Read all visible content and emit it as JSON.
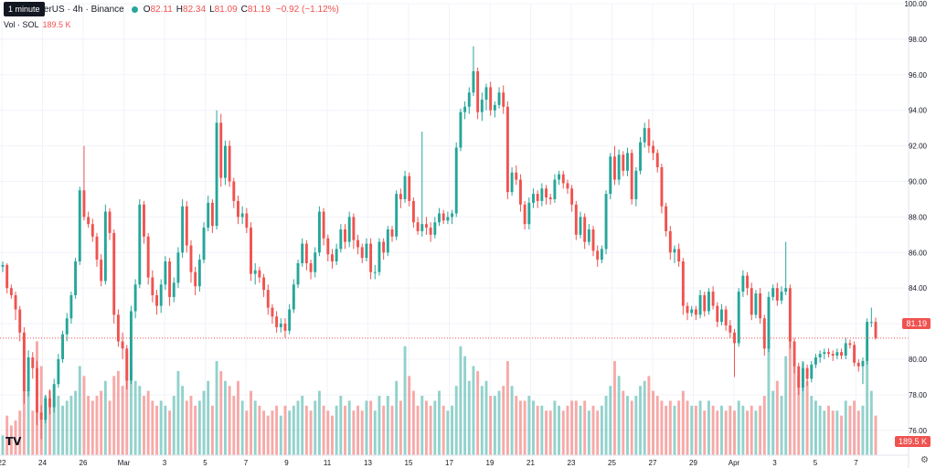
{
  "header": {
    "symbol_text": "etherUS · 4h · Binance",
    "o_label": "O",
    "o_value": "82.11",
    "h_label": "H",
    "h_value": "82.34",
    "l_label": "L",
    "l_value": "81.09",
    "c_label": "C",
    "c_value": "81.19",
    "change": "−0.92 (−1.12%)",
    "interval_tooltip": "1 minute"
  },
  "volume_legend": {
    "label": "Vol · SOL",
    "value": "189.5 K"
  },
  "price_tag": "81.19",
  "volume_tag": "189.5 K",
  "logo_text": "TV",
  "settings_icon": "gear-icon",
  "colors": {
    "up": "#26a69a",
    "down": "#ef5350",
    "grid": "#f0f3fa",
    "axis_text": "#131722"
  },
  "chart_data": {
    "type": "candlestick",
    "y_axis": {
      "min": 74.6,
      "max": 100.0,
      "ticks": [
        "100.00",
        "98.00",
        "96.00",
        "94.00",
        "92.00",
        "90.00",
        "88.00",
        "86.00",
        "84.00",
        "82.00",
        "80.00",
        "78.00",
        "76.00"
      ]
    },
    "x_axis": {
      "ticks": [
        "22",
        "24",
        "26",
        "Mar",
        "3",
        "5",
        "7",
        "9",
        "11",
        "13",
        "15",
        "17",
        "19",
        "21",
        "23",
        "25",
        "27",
        "29",
        "Apr",
        "3",
        "5",
        "7"
      ]
    },
    "last_price": 81.19,
    "candles_ohlcv": [
      [
        85.2,
        85.5,
        84.9,
        85.3,
        20
      ],
      [
        85.3,
        85.4,
        83.7,
        84.0,
        40
      ],
      [
        84.0,
        84.2,
        83.4,
        83.6,
        30
      ],
      [
        83.6,
        83.8,
        82.2,
        82.8,
        35
      ],
      [
        82.8,
        83.0,
        81.0,
        81.5,
        45
      ],
      [
        81.5,
        81.8,
        77.5,
        78.2,
        120
      ],
      [
        78.2,
        80.5,
        77.9,
        80.1,
        70
      ],
      [
        80.1,
        80.4,
        78.9,
        79.5,
        45
      ],
      [
        79.5,
        79.9,
        76.3,
        77.0,
        115
      ],
      [
        77.0,
        77.4,
        75.5,
        76.6,
        90
      ],
      [
        76.6,
        78.0,
        76.4,
        77.8,
        60
      ],
      [
        77.8,
        78.3,
        76.9,
        77.3,
        65
      ],
      [
        77.3,
        78.9,
        77.0,
        78.6,
        55
      ],
      [
        78.6,
        80.3,
        78.4,
        80.0,
        60
      ],
      [
        80.0,
        81.6,
        79.8,
        81.4,
        50
      ],
      [
        81.4,
        82.6,
        81.0,
        82.3,
        55
      ],
      [
        82.3,
        83.8,
        82.0,
        83.6,
        60
      ],
      [
        83.6,
        85.7,
        83.4,
        85.5,
        65
      ],
      [
        85.5,
        89.7,
        85.3,
        89.5,
        90
      ],
      [
        89.5,
        92.0,
        87.8,
        88.0,
        80
      ],
      [
        88.0,
        88.3,
        87.4,
        87.6,
        60
      ],
      [
        87.6,
        87.9,
        86.6,
        86.9,
        55
      ],
      [
        86.9,
        87.1,
        85.2,
        85.6,
        60
      ],
      [
        85.6,
        85.9,
        84.1,
        84.4,
        65
      ],
      [
        84.4,
        88.7,
        84.2,
        88.3,
        75
      ],
      [
        88.3,
        88.5,
        86.7,
        87.1,
        55
      ],
      [
        87.1,
        87.3,
        82.0,
        82.5,
        80
      ],
      [
        82.5,
        82.8,
        80.7,
        81.0,
        85
      ],
      [
        81.0,
        81.5,
        80.0,
        80.6,
        70
      ],
      [
        80.6,
        80.8,
        78.3,
        78.8,
        105
      ],
      [
        78.8,
        83.0,
        78.6,
        82.7,
        90
      ],
      [
        82.7,
        84.5,
        82.3,
        84.2,
        75
      ],
      [
        84.2,
        89.0,
        84.0,
        88.7,
        70
      ],
      [
        88.7,
        88.9,
        86.5,
        86.9,
        60
      ],
      [
        86.9,
        87.1,
        84.2,
        84.6,
        65
      ],
      [
        84.6,
        85.0,
        83.2,
        83.6,
        55
      ],
      [
        83.6,
        83.9,
        82.5,
        83.0,
        50
      ],
      [
        83.0,
        84.5,
        82.6,
        84.2,
        55
      ],
      [
        84.2,
        85.8,
        83.9,
        85.5,
        50
      ],
      [
        85.5,
        85.7,
        83.0,
        83.5,
        45
      ],
      [
        83.5,
        84.6,
        83.2,
        84.3,
        60
      ],
      [
        84.3,
        86.3,
        84.0,
        86.0,
        85
      ],
      [
        86.0,
        89.0,
        85.7,
        88.6,
        70
      ],
      [
        88.6,
        88.9,
        86.0,
        86.4,
        55
      ],
      [
        86.4,
        86.7,
        84.3,
        84.9,
        60
      ],
      [
        84.9,
        85.2,
        83.6,
        84.1,
        50
      ],
      [
        84.1,
        85.9,
        83.8,
        85.6,
        55
      ],
      [
        85.6,
        87.7,
        85.4,
        87.4,
        65
      ],
      [
        87.4,
        89.2,
        87.2,
        88.8,
        75
      ],
      [
        88.8,
        89.0,
        87.1,
        87.5,
        50
      ],
      [
        87.5,
        94.0,
        87.3,
        93.3,
        95
      ],
      [
        93.3,
        93.8,
        89.7,
        90.2,
        85
      ],
      [
        90.2,
        92.3,
        89.8,
        92.0,
        75
      ],
      [
        92.0,
        92.3,
        89.7,
        90.0,
        70
      ],
      [
        90.0,
        90.2,
        88.5,
        88.9,
        60
      ],
      [
        88.9,
        89.2,
        87.6,
        88.0,
        75
      ],
      [
        88.0,
        88.6,
        87.6,
        88.2,
        55
      ],
      [
        88.2,
        88.5,
        87.1,
        87.4,
        45
      ],
      [
        87.4,
        87.7,
        84.4,
        84.8,
        65
      ],
      [
        84.8,
        85.4,
        84.2,
        85.0,
        55
      ],
      [
        85.0,
        85.2,
        84.3,
        84.6,
        50
      ],
      [
        84.6,
        84.8,
        83.5,
        83.9,
        45
      ],
      [
        83.9,
        84.2,
        82.5,
        82.9,
        40
      ],
      [
        82.9,
        83.1,
        82.0,
        82.4,
        45
      ],
      [
        82.4,
        82.7,
        81.5,
        81.8,
        50
      ],
      [
        81.8,
        82.3,
        81.5,
        82.0,
        40
      ],
      [
        82.0,
        82.3,
        81.2,
        81.6,
        50
      ],
      [
        81.6,
        83.1,
        81.4,
        82.8,
        45
      ],
      [
        82.8,
        84.5,
        82.6,
        84.2,
        50
      ],
      [
        84.2,
        85.6,
        84.0,
        85.4,
        55
      ],
      [
        85.4,
        86.8,
        85.2,
        86.5,
        60
      ],
      [
        86.5,
        86.7,
        85.0,
        85.4,
        50
      ],
      [
        85.4,
        85.6,
        84.5,
        84.9,
        45
      ],
      [
        84.9,
        86.3,
        84.6,
        86.0,
        55
      ],
      [
        86.0,
        88.6,
        85.8,
        88.3,
        65
      ],
      [
        88.3,
        88.5,
        86.4,
        86.8,
        50
      ],
      [
        86.8,
        87.0,
        85.5,
        85.9,
        45
      ],
      [
        85.9,
        86.2,
        85.1,
        85.5,
        40
      ],
      [
        85.5,
        86.5,
        85.3,
        86.2,
        50
      ],
      [
        86.2,
        87.6,
        86.0,
        87.3,
        60
      ],
      [
        87.3,
        87.6,
        86.2,
        86.6,
        50
      ],
      [
        86.6,
        88.3,
        86.3,
        88.0,
        55
      ],
      [
        88.0,
        88.2,
        86.2,
        86.7,
        45
      ],
      [
        86.7,
        87.0,
        85.9,
        86.3,
        50
      ],
      [
        86.3,
        86.5,
        85.4,
        85.7,
        45
      ],
      [
        85.7,
        86.8,
        85.5,
        86.5,
        55
      ],
      [
        86.5,
        86.8,
        84.5,
        84.9,
        55
      ],
      [
        84.9,
        85.3,
        84.5,
        84.9,
        45
      ],
      [
        84.9,
        86.8,
        84.7,
        86.6,
        60
      ],
      [
        86.6,
        86.8,
        85.6,
        86.0,
        50
      ],
      [
        86.0,
        87.5,
        85.8,
        87.3,
        60
      ],
      [
        87.3,
        87.5,
        86.6,
        86.9,
        50
      ],
      [
        86.9,
        89.5,
        86.7,
        89.3,
        75
      ],
      [
        89.3,
        89.6,
        88.5,
        89.0,
        55
      ],
      [
        89.0,
        90.6,
        88.8,
        90.3,
        110
      ],
      [
        90.3,
        90.5,
        88.6,
        88.9,
        80
      ],
      [
        88.9,
        89.1,
        87.4,
        87.7,
        65
      ],
      [
        87.7,
        88.0,
        87.0,
        87.2,
        50
      ],
      [
        87.2,
        92.8,
        86.9,
        87.6,
        60
      ],
      [
        87.6,
        88.0,
        87.0,
        87.4,
        55
      ],
      [
        87.4,
        87.7,
        86.6,
        87.0,
        50
      ],
      [
        87.0,
        88.0,
        86.8,
        87.7,
        55
      ],
      [
        87.7,
        88.5,
        87.5,
        88.2,
        65
      ],
      [
        88.2,
        88.4,
        87.6,
        87.8,
        50
      ],
      [
        87.8,
        88.3,
        87.6,
        88.0,
        45
      ],
      [
        88.0,
        88.4,
        87.6,
        88.2,
        50
      ],
      [
        88.2,
        92.2,
        88.0,
        91.9,
        70
      ],
      [
        91.9,
        94.1,
        91.7,
        93.9,
        110
      ],
      [
        93.9,
        94.5,
        93.5,
        94.2,
        100
      ],
      [
        94.2,
        95.3,
        93.8,
        95.0,
        75
      ],
      [
        95.0,
        97.6,
        94.8,
        96.2,
        90
      ],
      [
        96.2,
        96.4,
        93.5,
        93.9,
        85
      ],
      [
        93.9,
        95.0,
        93.4,
        94.6,
        70
      ],
      [
        94.6,
        95.5,
        94.0,
        95.3,
        75
      ],
      [
        95.3,
        95.6,
        93.7,
        94.0,
        60
      ],
      [
        94.0,
        94.5,
        93.6,
        94.3,
        60
      ],
      [
        94.3,
        95.3,
        94.1,
        95.0,
        65
      ],
      [
        95.0,
        95.4,
        93.8,
        94.2,
        70
      ],
      [
        94.2,
        94.5,
        89.0,
        89.4,
        95
      ],
      [
        89.4,
        90.8,
        89.2,
        90.5,
        70
      ],
      [
        90.5,
        90.9,
        89.8,
        90.1,
        60
      ],
      [
        90.1,
        90.4,
        88.3,
        88.7,
        55
      ],
      [
        88.7,
        88.9,
        87.3,
        87.6,
        55
      ],
      [
        87.6,
        89.1,
        87.3,
        88.8,
        60
      ],
      [
        88.8,
        89.6,
        88.5,
        89.3,
        55
      ],
      [
        89.3,
        89.5,
        88.5,
        88.9,
        50
      ],
      [
        88.9,
        89.9,
        88.6,
        89.6,
        50
      ],
      [
        89.6,
        89.8,
        88.7,
        89.1,
        45
      ],
      [
        89.1,
        89.3,
        88.7,
        89.0,
        45
      ],
      [
        89.0,
        90.4,
        88.8,
        90.1,
        55
      ],
      [
        90.1,
        90.6,
        89.8,
        90.4,
        50
      ],
      [
        90.4,
        90.6,
        89.6,
        89.9,
        45
      ],
      [
        89.9,
        90.1,
        89.3,
        89.6,
        50
      ],
      [
        89.6,
        89.8,
        88.3,
        88.7,
        55
      ],
      [
        88.7,
        88.9,
        86.7,
        87.0,
        55
      ],
      [
        87.0,
        88.3,
        86.8,
        88.0,
        50
      ],
      [
        88.0,
        88.2,
        86.2,
        86.6,
        55
      ],
      [
        86.6,
        87.6,
        86.4,
        87.3,
        45
      ],
      [
        87.3,
        87.5,
        85.8,
        86.1,
        50
      ],
      [
        86.1,
        86.4,
        85.2,
        85.6,
        45
      ],
      [
        85.6,
        86.4,
        85.4,
        86.2,
        50
      ],
      [
        86.2,
        89.5,
        85.9,
        89.3,
        60
      ],
      [
        89.3,
        91.6,
        89.0,
        91.4,
        70
      ],
      [
        91.4,
        92.0,
        89.8,
        90.1,
        95
      ],
      [
        90.1,
        91.8,
        89.8,
        91.5,
        80
      ],
      [
        91.5,
        91.7,
        90.3,
        90.6,
        65
      ],
      [
        90.6,
        91.9,
        90.3,
        91.6,
        60
      ],
      [
        91.6,
        91.8,
        88.7,
        89.0,
        55
      ],
      [
        89.0,
        90.8,
        88.6,
        90.6,
        60
      ],
      [
        90.6,
        92.5,
        90.4,
        92.2,
        70
      ],
      [
        92.2,
        93.3,
        91.9,
        93.0,
        75
      ],
      [
        93.0,
        93.5,
        91.6,
        92.0,
        80
      ],
      [
        92.0,
        92.3,
        91.2,
        91.6,
        65
      ],
      [
        91.6,
        91.8,
        90.5,
        90.8,
        60
      ],
      [
        90.8,
        91.0,
        88.2,
        88.6,
        55
      ],
      [
        88.6,
        88.8,
        86.9,
        87.2,
        50
      ],
      [
        87.2,
        87.5,
        85.6,
        86.0,
        55
      ],
      [
        86.0,
        86.4,
        85.4,
        86.2,
        50
      ],
      [
        86.2,
        86.5,
        85.2,
        85.5,
        55
      ],
      [
        85.5,
        85.7,
        82.5,
        83.0,
        65
      ],
      [
        83.0,
        83.2,
        82.2,
        82.6,
        55
      ],
      [
        82.6,
        83.0,
        82.4,
        82.8,
        50
      ],
      [
        82.8,
        83.0,
        82.2,
        82.5,
        50
      ],
      [
        82.5,
        83.9,
        82.3,
        83.6,
        55
      ],
      [
        83.6,
        83.8,
        82.4,
        82.7,
        45
      ],
      [
        82.7,
        84.0,
        82.5,
        83.8,
        55
      ],
      [
        83.8,
        84.1,
        82.8,
        83.0,
        50
      ],
      [
        83.0,
        83.2,
        81.8,
        82.1,
        45
      ],
      [
        82.1,
        83.1,
        81.9,
        82.8,
        50
      ],
      [
        82.8,
        83.0,
        81.6,
        81.9,
        45
      ],
      [
        81.9,
        82.2,
        81.2,
        81.5,
        50
      ],
      [
        81.5,
        81.7,
        79.0,
        80.9,
        45
      ],
      [
        80.9,
        84.0,
        80.7,
        83.8,
        55
      ],
      [
        83.8,
        85.0,
        83.5,
        84.7,
        50
      ],
      [
        84.7,
        84.9,
        83.6,
        84.0,
        45
      ],
      [
        84.0,
        84.3,
        82.2,
        82.5,
        50
      ],
      [
        82.5,
        83.9,
        82.3,
        83.7,
        45
      ],
      [
        83.7,
        84.0,
        82.0,
        82.3,
        50
      ],
      [
        82.3,
        82.5,
        80.2,
        80.6,
        60
      ],
      [
        80.6,
        83.8,
        80.4,
        83.5,
        110
      ],
      [
        83.5,
        84.2,
        83.3,
        84.0,
        65
      ],
      [
        84.0,
        84.3,
        83.0,
        83.3,
        75
      ],
      [
        83.3,
        84.1,
        83.1,
        83.8,
        60
      ],
      [
        83.8,
        86.6,
        83.6,
        84.0,
        100
      ],
      [
        84.0,
        84.2,
        80.6,
        81.0,
        120
      ],
      [
        81.0,
        81.2,
        79.2,
        79.6,
        90
      ],
      [
        79.6,
        79.8,
        78.0,
        78.4,
        80
      ],
      [
        78.4,
        79.8,
        78.2,
        79.5,
        95
      ],
      [
        79.5,
        79.7,
        78.5,
        78.9,
        75
      ],
      [
        78.9,
        79.9,
        78.7,
        79.7,
        60
      ],
      [
        79.7,
        80.3,
        79.5,
        80.1,
        55
      ],
      [
        80.1,
        80.5,
        79.8,
        80.3,
        50
      ],
      [
        80.3,
        80.6,
        80.0,
        80.4,
        45
      ],
      [
        80.4,
        80.6,
        80.1,
        80.3,
        50
      ],
      [
        80.3,
        80.5,
        79.9,
        80.2,
        45
      ],
      [
        80.2,
        80.6,
        80.0,
        80.4,
        45
      ],
      [
        80.4,
        80.6,
        80.0,
        80.2,
        40
      ],
      [
        80.2,
        81.2,
        80.0,
        80.9,
        55
      ],
      [
        80.9,
        81.1,
        80.6,
        80.8,
        50
      ],
      [
        80.8,
        81.0,
        79.6,
        79.8,
        55
      ],
      [
        79.8,
        80.0,
        79.3,
        79.6,
        45
      ],
      [
        79.6,
        80.1,
        78.6,
        79.9,
        50
      ],
      [
        79.9,
        82.3,
        79.7,
        82.1,
        95
      ],
      [
        82.1,
        82.9,
        81.8,
        82.1,
        65
      ],
      [
        82.1,
        82.34,
        81.09,
        81.19,
        40
      ]
    ]
  }
}
